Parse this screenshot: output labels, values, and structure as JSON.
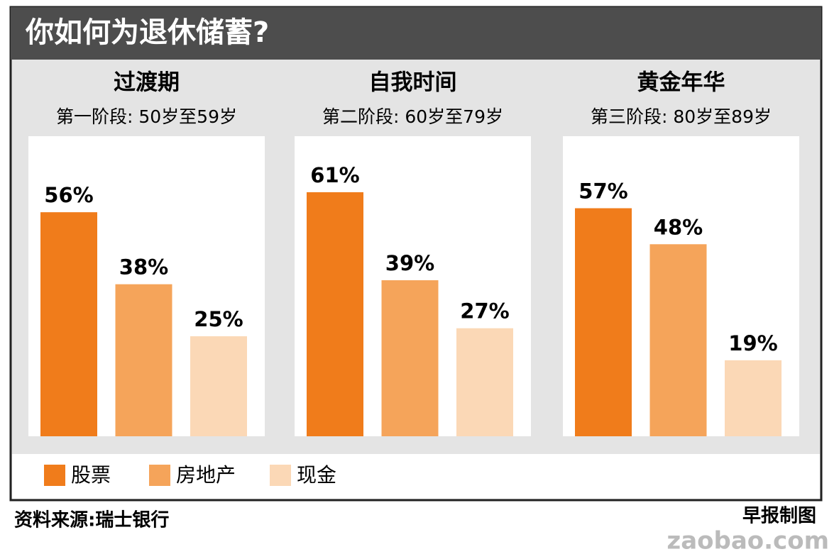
{
  "title": "你如何为退休储蓄?",
  "legend": [
    {
      "name": "股票",
      "color": "#f07c1b"
    },
    {
      "name": "房地产",
      "color": "#f5a45a"
    },
    {
      "name": "现金",
      "color": "#fbd8b6"
    }
  ],
  "chart_data": [
    {
      "type": "bar",
      "title": "过渡期",
      "subtitle": "第一阶段: 50岁至59岁",
      "values": [
        56,
        38,
        25
      ],
      "value_labels": [
        "56%",
        "38%",
        "25%"
      ],
      "ylim": [
        0,
        75
      ]
    },
    {
      "type": "bar",
      "title": "自我时间",
      "subtitle": "第二阶段: 60岁至79岁",
      "values": [
        61,
        39,
        27
      ],
      "value_labels": [
        "61%",
        "39%",
        "27%"
      ],
      "ylim": [
        0,
        75
      ]
    },
    {
      "type": "bar",
      "title": "黄金年华",
      "subtitle": "第三阶段: 80岁至89岁",
      "values": [
        57,
        48,
        19
      ],
      "value_labels": [
        "57%",
        "48%",
        "19%"
      ],
      "ylim": [
        0,
        75
      ]
    }
  ],
  "source": "资料来源:瑞士银行",
  "credit": "早报制图",
  "watermark": "zaobao.com"
}
